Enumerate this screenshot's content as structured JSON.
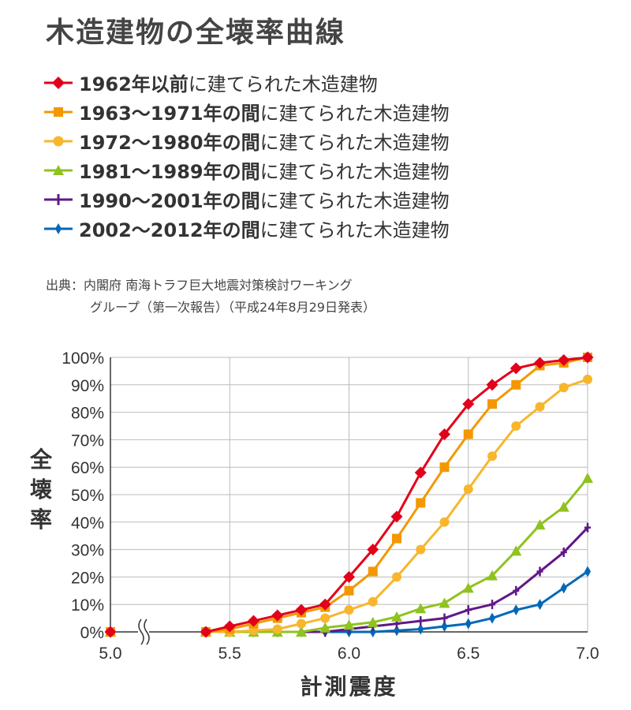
{
  "title": "木造建物の全壊率曲線",
  "legend": [
    {
      "bold": "1962年以前",
      "suffix": "に建てられた木造建物",
      "color": "#e2001a",
      "marker": "diamond"
    },
    {
      "bold": "1963〜1971年の間",
      "suffix": "に建てられた木造建物",
      "color": "#f39800",
      "marker": "square"
    },
    {
      "bold": "1972〜1980年の間",
      "suffix": "に建てられた木造建物",
      "color": "#f8b62d",
      "marker": "circle"
    },
    {
      "bold": "1981〜1989年の間",
      "suffix": "に建てられた木造建物",
      "color": "#8fc31f",
      "marker": "triangle"
    },
    {
      "bold": "1990〜2001年の間",
      "suffix": "に建てられた木造建物",
      "color": "#601986",
      "marker": "plus"
    },
    {
      "bold": "2002〜2012年の間",
      "suffix": "に建てられた木造建物",
      "color": "#0068b7",
      "marker": "diamond-small"
    }
  ],
  "source": {
    "line1": "出典：内閣府 南海トラフ巨大地震対策検討ワーキング",
    "line2": "グループ（第一次報告）（平成24年8月29日発表）"
  },
  "chart_data": {
    "type": "line",
    "xlabel": "計測震度",
    "ylabel": "全壊率",
    "x_ticks": [
      "5.0",
      "5.5",
      "6.0",
      "6.5",
      "7.0"
    ],
    "y_ticks": [
      "0%",
      "10%",
      "20%",
      "30%",
      "40%",
      "50%",
      "60%",
      "70%",
      "80%",
      "90%",
      "100%"
    ],
    "xlim": [
      5.0,
      7.0
    ],
    "ylim": [
      0,
      100
    ],
    "axis_break": "between 5.0 and 5.4",
    "grid": true,
    "x": [
      5.0,
      5.4,
      5.5,
      5.6,
      5.7,
      5.8,
      5.9,
      6.0,
      6.1,
      6.2,
      6.3,
      6.4,
      6.5,
      6.6,
      6.7,
      6.8,
      6.9,
      7.0
    ],
    "series": [
      {
        "name": "1962年以前",
        "color": "#e2001a",
        "marker": "diamond",
        "values": [
          0,
          0,
          2,
          4,
          6,
          8,
          10,
          20,
          30,
          42,
          58,
          72,
          83,
          90,
          96,
          98,
          99,
          100
        ]
      },
      {
        "name": "1963〜1971年の間",
        "color": "#f39800",
        "marker": "square",
        "values": [
          0,
          0,
          1,
          3,
          5,
          7,
          9,
          15,
          22,
          34,
          47,
          60,
          72,
          83,
          90,
          97,
          98,
          100
        ]
      },
      {
        "name": "1972〜1980年の間",
        "color": "#f8b62d",
        "marker": "circle",
        "values": [
          0,
          0,
          0,
          0.5,
          1,
          3,
          5,
          8,
          11,
          20,
          30,
          40,
          52,
          64,
          75,
          82,
          89,
          92
        ]
      },
      {
        "name": "1981〜1989年の間",
        "color": "#8fc31f",
        "marker": "triangle",
        "values": [
          0,
          0,
          0,
          0,
          0,
          0,
          1.5,
          2.5,
          3.5,
          5.5,
          8.5,
          10.5,
          16,
          20.5,
          29.5,
          39,
          45.5,
          56
        ]
      },
      {
        "name": "1990〜2001年の間",
        "color": "#601986",
        "marker": "plus",
        "values": [
          0,
          0,
          0,
          0,
          0,
          0,
          0,
          1,
          2,
          3,
          4,
          5,
          8,
          10,
          15,
          22,
          29,
          38
        ]
      },
      {
        "name": "2002〜2012年の間",
        "color": "#0068b7",
        "marker": "diamond-small",
        "values": [
          0,
          0,
          0,
          0,
          0,
          0,
          0,
          0,
          0,
          0.5,
          1,
          2,
          3,
          5,
          8,
          10,
          16,
          22
        ]
      }
    ]
  }
}
